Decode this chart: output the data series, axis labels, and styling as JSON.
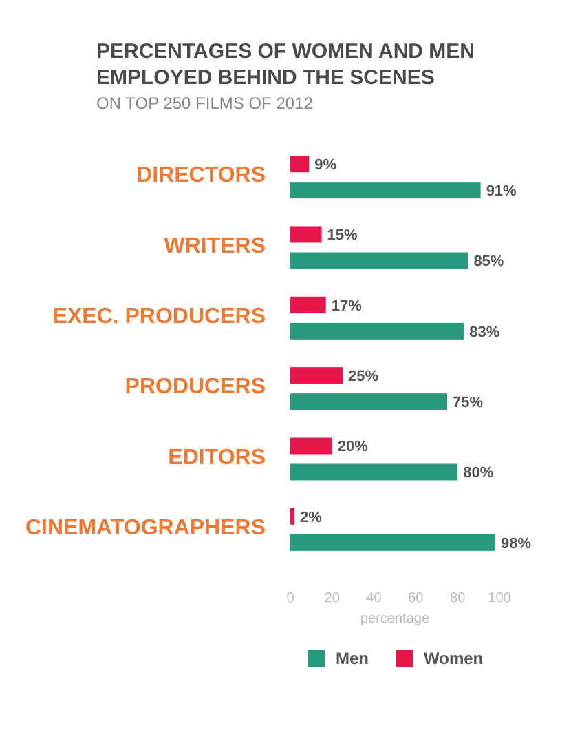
{
  "chart_data": {
    "type": "bar",
    "orientation": "horizontal",
    "title": "PERCENTAGES OF WOMEN AND MEN\nEMPLOYED BEHIND THE SCENES",
    "subtitle": "ON TOP 250 FILMS OF 2012",
    "xlabel": "percentage",
    "categories": [
      "DIRECTORS",
      "WRITERS",
      "EXEC. PRODUCERS",
      "PRODUCERS",
      "EDITORS",
      "CINEMATOGRAPHERS"
    ],
    "series": [
      {
        "name": "Men",
        "color": "#2a9a7e",
        "values": [
          91,
          85,
          83,
          75,
          80,
          98
        ],
        "value_labels": [
          "91%",
          "85%",
          "83%",
          "75%",
          "80%",
          "98%"
        ]
      },
      {
        "name": "Women",
        "color": "#e8164a",
        "values": [
          9,
          15,
          17,
          25,
          20,
          2
        ],
        "value_labels": [
          "9%",
          "15%",
          "17%",
          "25%",
          "20%",
          "2%"
        ]
      }
    ],
    "xlim": [
      0,
      100
    ],
    "xticks": [
      0,
      20,
      40,
      60,
      80,
      100
    ],
    "grid": false,
    "legend": "bottom"
  }
}
